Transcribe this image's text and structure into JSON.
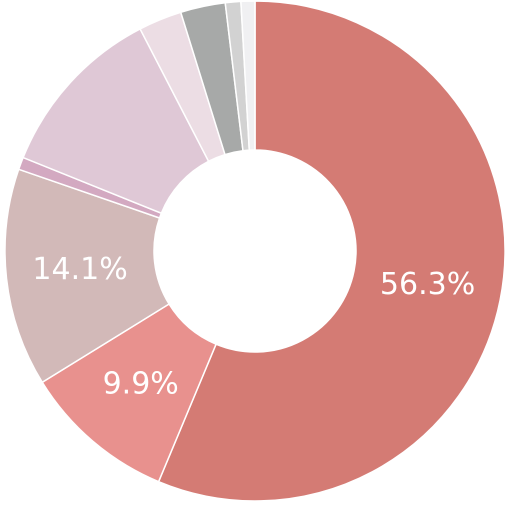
{
  "chart_data": {
    "type": "donut",
    "values": [
      56.3,
      9.9,
      14.1,
      0.8,
      11.3,
      2.8,
      2.9,
      1.0,
      0.9
    ],
    "value_labels": [
      "56.3%",
      "9.9%",
      "14.1%",
      null,
      null,
      null,
      null,
      null,
      null
    ],
    "colors": [
      "#d47b74",
      "#e8918e",
      "#d2b9b8",
      "#d3a9c1",
      "#dfc8d6",
      "#ecdde4",
      "#a7a9a8",
      "#d2d2d2",
      "#f0f0f2"
    ]
  }
}
